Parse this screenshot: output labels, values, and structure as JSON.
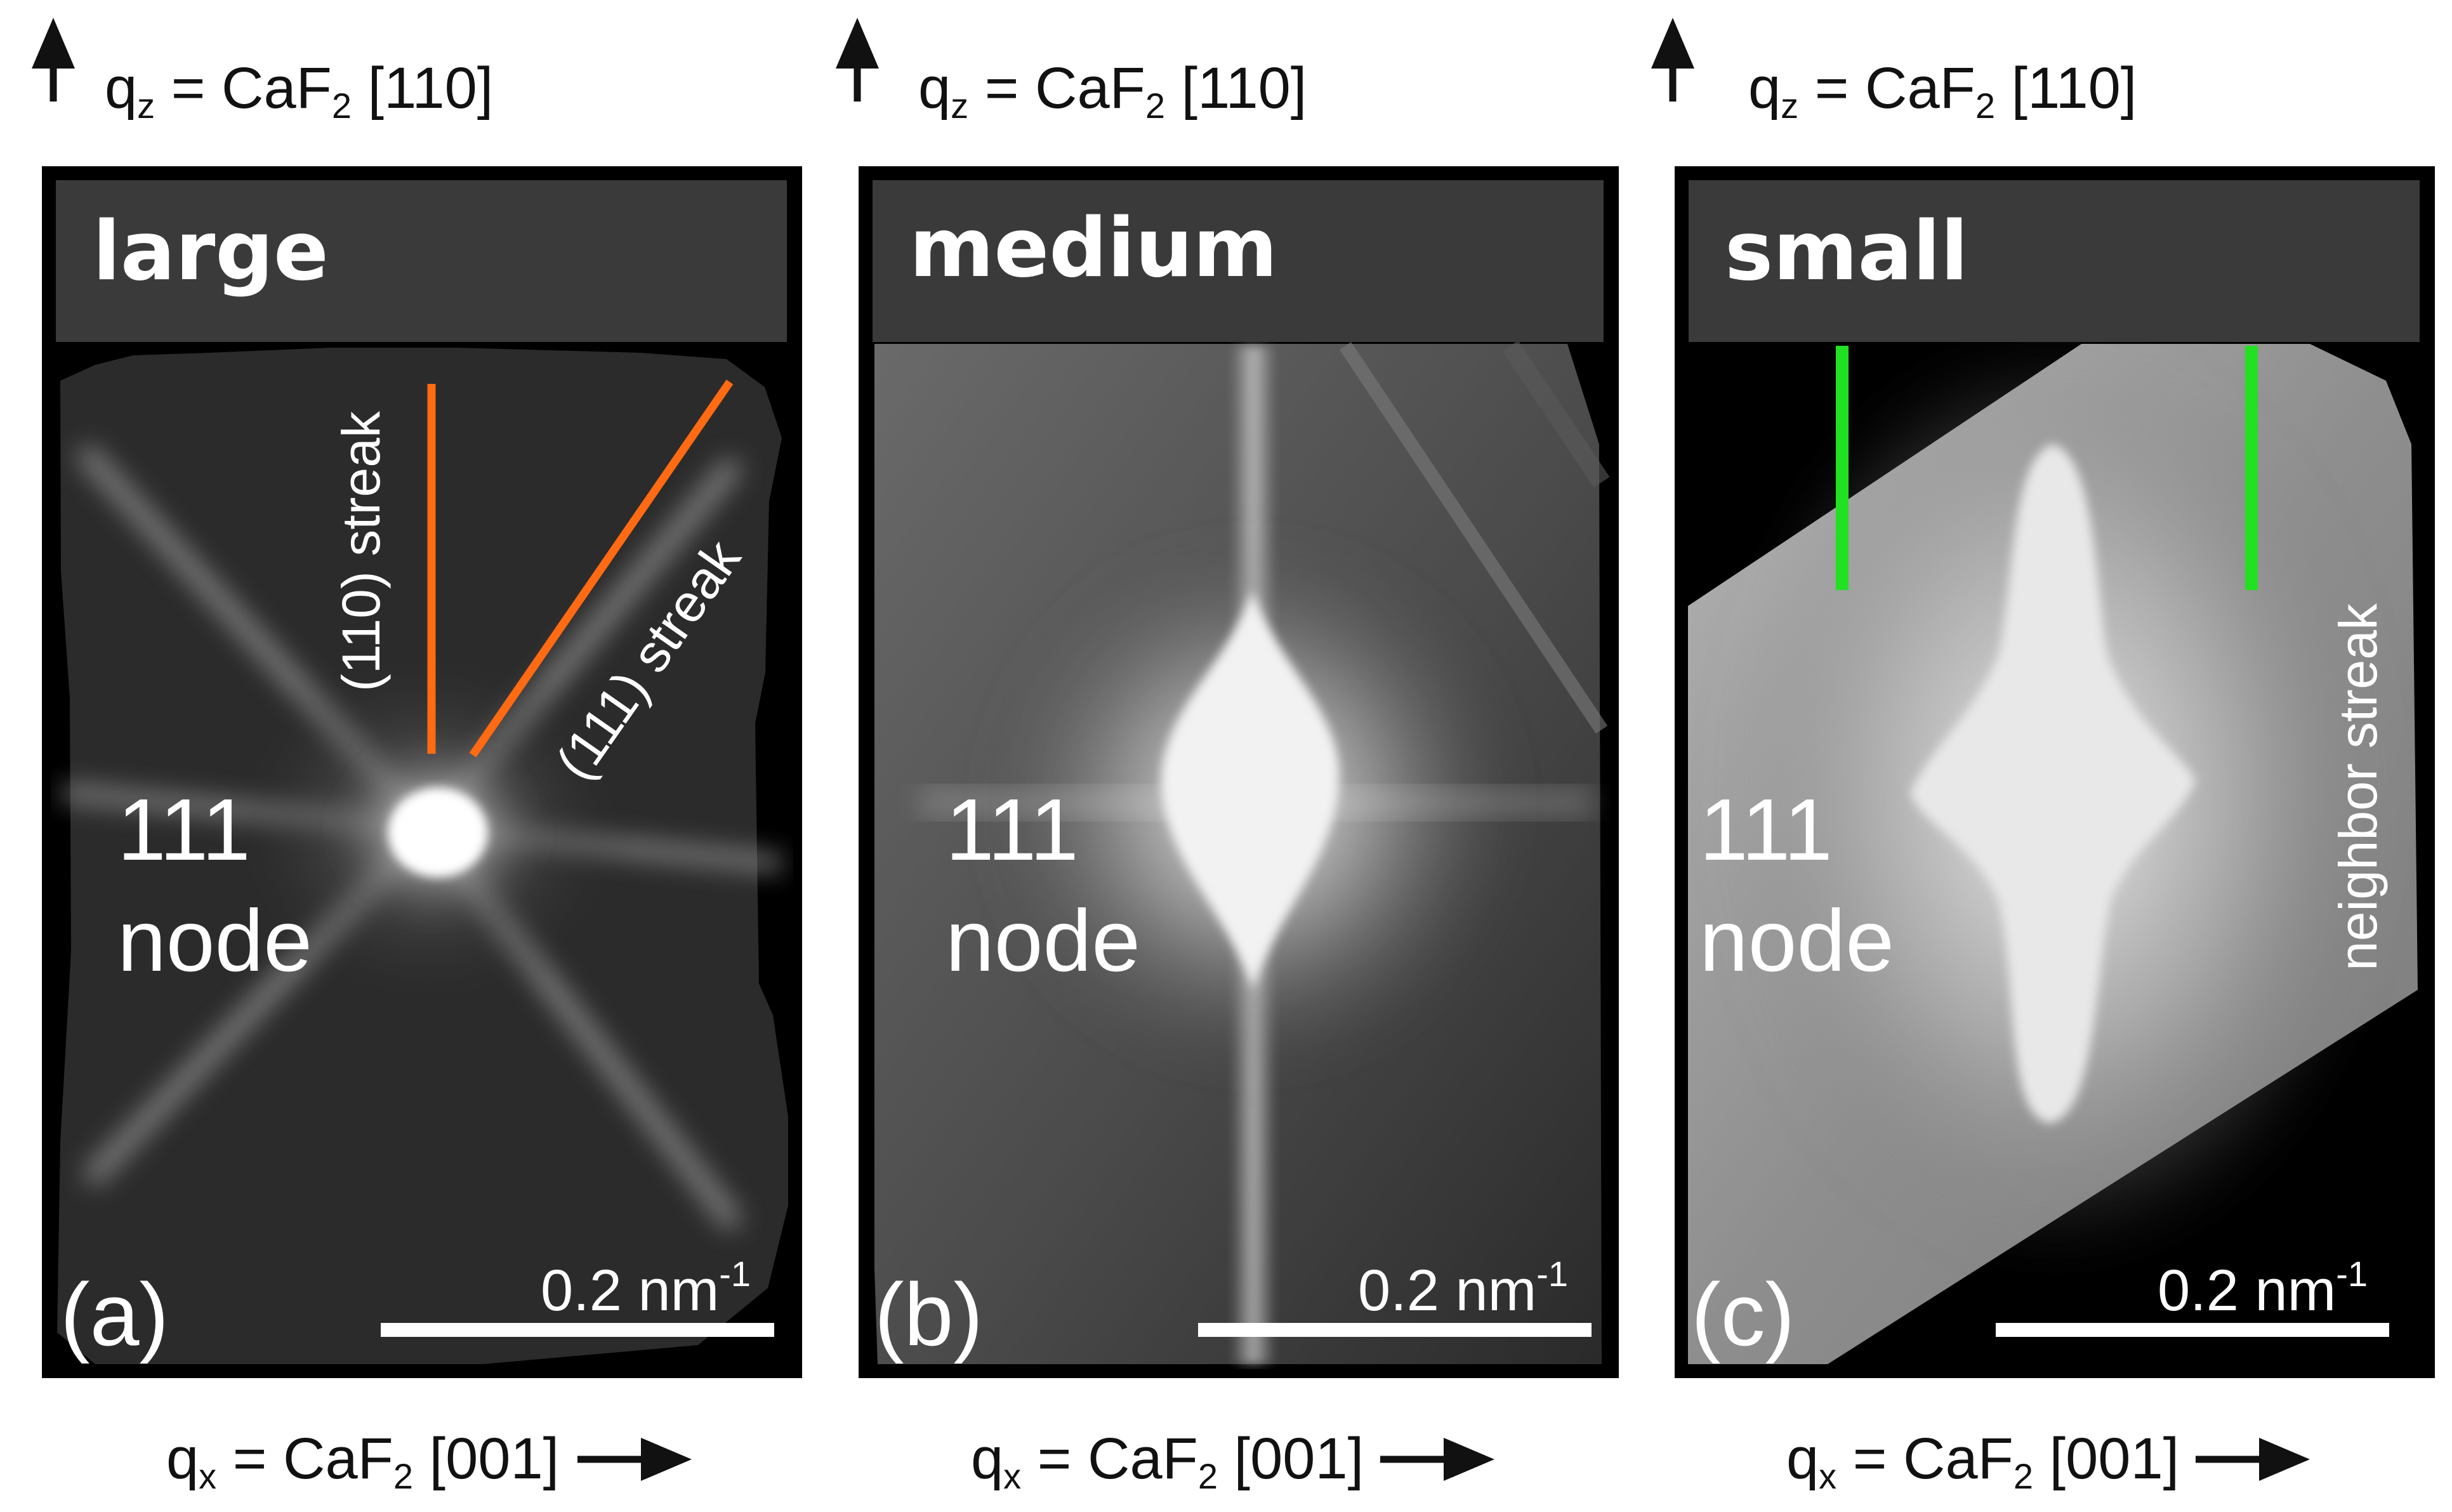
{
  "axes": {
    "qz_symbol": "q",
    "qz_sub": "z",
    "qz_eq": " = CaF",
    "qz_sub2": "2",
    "qz_dir": " [110]",
    "qx_symbol": "q",
    "qx_sub": "x",
    "qx_eq": " = CaF",
    "qx_sub2": "2",
    "qx_dir": " [001]"
  },
  "panels": [
    {
      "title": "large",
      "label": "(a)",
      "node_line1": "111",
      "node_line2": "node",
      "scale_value": "0.2 nm",
      "scale_exp": "-1",
      "annotations": {
        "streak_110": "(110) streak",
        "streak_111": "(111) streak",
        "marker_color": "#ff6a13"
      }
    },
    {
      "title": "medium",
      "label": "(b)",
      "node_line1": "111",
      "node_line2": "node",
      "scale_value": "0.2 nm",
      "scale_exp": "-1"
    },
    {
      "title": "small",
      "label": "(c)",
      "node_line1": "111",
      "node_line2": "node",
      "scale_value": "0.2 nm",
      "scale_exp": "-1",
      "annotations": {
        "neighbor_streak": "neighbor streak",
        "marker_color": "#22e022"
      }
    }
  ]
}
